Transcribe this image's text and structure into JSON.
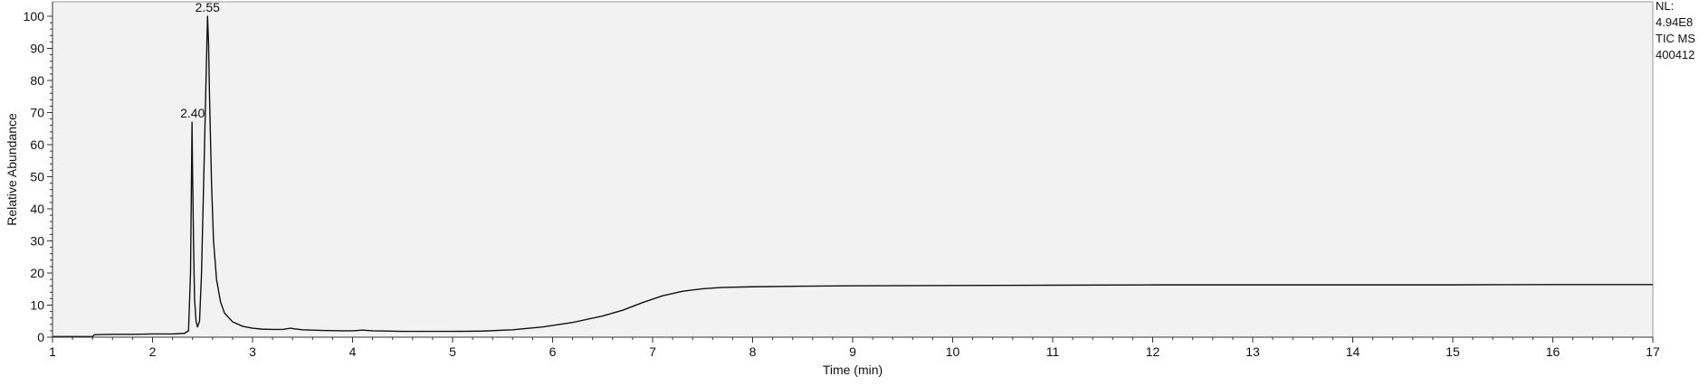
{
  "chart_data": {
    "type": "line",
    "title": "",
    "xlabel": "Time (min)",
    "ylabel": "Relative Abundance",
    "xlim": [
      1,
      17
    ],
    "ylim": [
      0,
      100
    ],
    "x_ticks": [
      1,
      2,
      3,
      4,
      5,
      6,
      7,
      8,
      9,
      10,
      11,
      12,
      13,
      14,
      15,
      16,
      17
    ],
    "y_ticks": [
      0,
      10,
      20,
      30,
      40,
      50,
      60,
      70,
      80,
      90,
      100
    ],
    "grid": false,
    "colors": {
      "plot_background": "#f2f2f2",
      "trace": "#111111",
      "axis": "#333333"
    },
    "peak_labels": [
      {
        "text": "2.40",
        "x": 2.4,
        "y": 67
      },
      {
        "text": "2.55",
        "x": 2.55,
        "y": 100
      }
    ],
    "info_lines": [
      "NL:",
      "4.94E8",
      "TIC  MS",
      "400412"
    ],
    "series": [
      {
        "points": [
          [
            1.0,
            0.2
          ],
          [
            1.4,
            0.2
          ],
          [
            1.42,
            0.8
          ],
          [
            1.6,
            0.9
          ],
          [
            1.8,
            0.9
          ],
          [
            2.0,
            1.0
          ],
          [
            2.2,
            1.0
          ],
          [
            2.32,
            1.2
          ],
          [
            2.36,
            2.0
          ],
          [
            2.38,
            20.0
          ],
          [
            2.395,
            67.0
          ],
          [
            2.4,
            52.0
          ],
          [
            2.41,
            30.0
          ],
          [
            2.42,
            12.0
          ],
          [
            2.435,
            5.0
          ],
          [
            2.45,
            3.2
          ],
          [
            2.47,
            5.0
          ],
          [
            2.49,
            20.0
          ],
          [
            2.52,
            60.0
          ],
          [
            2.55,
            100.0
          ],
          [
            2.56,
            92.0
          ],
          [
            2.57,
            75.0
          ],
          [
            2.59,
            48.0
          ],
          [
            2.61,
            30.0
          ],
          [
            2.64,
            18.0
          ],
          [
            2.68,
            11.0
          ],
          [
            2.72,
            7.5
          ],
          [
            2.8,
            4.8
          ],
          [
            2.9,
            3.4
          ],
          [
            3.0,
            2.8
          ],
          [
            3.1,
            2.5
          ],
          [
            3.2,
            2.4
          ],
          [
            3.3,
            2.4
          ],
          [
            3.38,
            2.8
          ],
          [
            3.42,
            2.6
          ],
          [
            3.5,
            2.3
          ],
          [
            3.7,
            2.1
          ],
          [
            3.9,
            2.0
          ],
          [
            4.0,
            2.0
          ],
          [
            4.1,
            2.2
          ],
          [
            4.2,
            2.0
          ],
          [
            4.5,
            1.8
          ],
          [
            5.0,
            1.8
          ],
          [
            5.3,
            1.9
          ],
          [
            5.6,
            2.3
          ],
          [
            5.9,
            3.2
          ],
          [
            6.2,
            4.6
          ],
          [
            6.5,
            6.6
          ],
          [
            6.7,
            8.4
          ],
          [
            6.9,
            10.8
          ],
          [
            7.1,
            12.9
          ],
          [
            7.3,
            14.3
          ],
          [
            7.5,
            15.1
          ],
          [
            7.7,
            15.5
          ],
          [
            8.0,
            15.7
          ],
          [
            8.5,
            15.9
          ],
          [
            9.0,
            16.0
          ],
          [
            10.0,
            16.1
          ],
          [
            11.0,
            16.2
          ],
          [
            12.0,
            16.3
          ],
          [
            13.0,
            16.3
          ],
          [
            14.0,
            16.3
          ],
          [
            15.0,
            16.3
          ],
          [
            16.0,
            16.4
          ],
          [
            17.0,
            16.4
          ]
        ]
      }
    ]
  }
}
